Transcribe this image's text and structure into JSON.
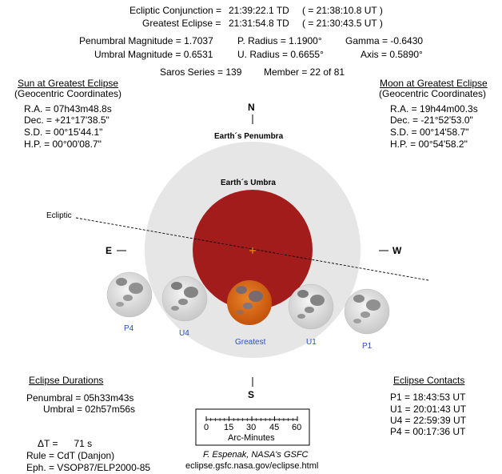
{
  "header": {
    "line1_label": "Ecliptic Conjunction =",
    "line1_value": "21:39:22.1 TD",
    "line1_ut": "( = 21:38:10.8 UT )",
    "line2_label": "Greatest Eclipse =",
    "line2_value": "21:31:54.8 TD",
    "line2_ut": "( = 21:30:43.5 UT )"
  },
  "params": {
    "penumbral_mag": "Penumbral Magnitude = 1.7037",
    "umbral_mag": "Umbral Magnitude = 0.6531",
    "p_radius": "P. Radius = 1.1900°",
    "u_radius": "U. Radius = 0.6655°",
    "gamma": "Gamma = -0.6430",
    "axis": "Axis = 0.5890°",
    "saros": "Saros Series = 139",
    "member": "Member = 22 of 81"
  },
  "sun": {
    "title": "Sun at Greatest Eclipse",
    "subtitle": "(Geocentric Coordinates)",
    "ra": "R.A. = 07h43m48.8s",
    "dec": "Dec. = +21°17'38.5\"",
    "sd": "S.D. = 00°15'44.1\"",
    "hp": "H.P. = 00°00'08.7\""
  },
  "moon": {
    "title": "Moon at Greatest Eclipse",
    "subtitle": "(Geocentric Coordinates)",
    "ra": "R.A. = 19h44m00.3s",
    "dec": "Dec. = -21°52'53.0\"",
    "sd": "S.D. = 00°14'58.7\"",
    "hp": "H.P. = 00°54'58.2\""
  },
  "diagram": {
    "north": "N",
    "south": "S",
    "east": "E",
    "west": "W",
    "penumbra_label": "Earth´s Penumbra",
    "umbra_label": "Earth´s Umbra",
    "ecliptic_label": "Ecliptic",
    "moon_labels": [
      "P4",
      "U4",
      "Greatest",
      "U1",
      "P1"
    ],
    "colors": {
      "penumbra": "#e6e6e6",
      "umbra": "#a31c1c",
      "greatest_moon": "#d96612",
      "label_blue": "#2a4fc4"
    }
  },
  "durations": {
    "title": "Eclipse Durations",
    "penumbral": "Penumbral = 05h33m43s",
    "umbral": "Umbral = 02h57m56s"
  },
  "contacts": {
    "title": "Eclipse Contacts",
    "p1": "P1 = 18:43:53 UT",
    "u1": "U1 = 20:01:43 UT",
    "u4": "U4 = 22:59:39 UT",
    "p4": "P4 = 00:17:36 UT"
  },
  "footer": {
    "delta_t": "ΔT =      71 s",
    "rule": "Rule = CdT (Danjon)",
    "eph": "Eph. = VSOP87/ELP2000-85",
    "credit": "F. Espenak, NASA's GSFC",
    "url": "eclipse.gsfc.nasa.gov/eclipse.html"
  },
  "scale": {
    "ticks": [
      "0",
      "15",
      "30",
      "45",
      "60"
    ],
    "label": "Arc-Minutes"
  }
}
